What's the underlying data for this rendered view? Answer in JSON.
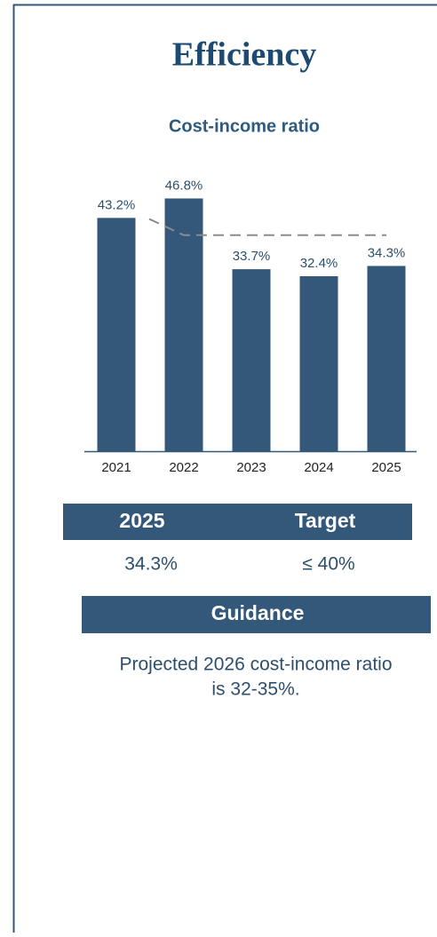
{
  "title": "Efficiency",
  "chart_data": {
    "type": "bar",
    "title": "Cost-income ratio",
    "categories": [
      "2021",
      "2022",
      "2023",
      "2024",
      "2025"
    ],
    "values": [
      43.2,
      46.8,
      33.7,
      32.4,
      34.3
    ],
    "value_labels": [
      "43.2%",
      "46.8%",
      "33.7%",
      "32.4%",
      "34.3%"
    ],
    "color": "#34587a",
    "ylim": [
      0,
      50
    ],
    "line": {
      "values": [
        43,
        40,
        40,
        40,
        40
      ],
      "color": "#8c8c8c",
      "dashed": true
    }
  },
  "table": {
    "header": [
      "2025",
      "Target"
    ],
    "row": [
      "34.3%",
      "≤ 40%"
    ]
  },
  "guidance": {
    "title": "Guidance",
    "text": [
      "Projected 2026 cost-income ratio",
      "is 32-35%."
    ]
  }
}
